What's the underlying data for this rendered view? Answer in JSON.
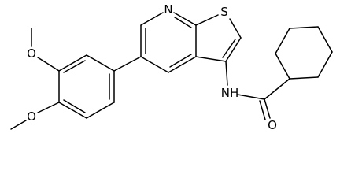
{
  "atoms": {
    "pyridine_n": "N",
    "thiophene_s": "S",
    "amide_nh": "NH",
    "carbonyl_o": "O",
    "methoxy_o_top": "O",
    "methoxy_o_bottom": "O"
  }
}
